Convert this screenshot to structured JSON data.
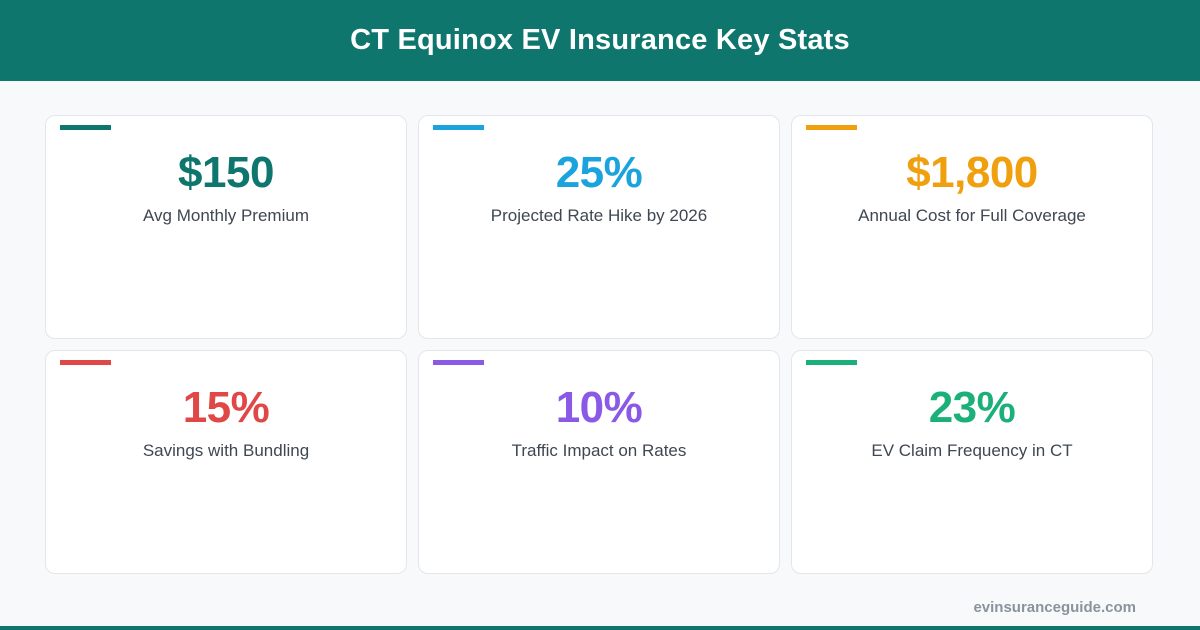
{
  "header": {
    "title": "CT Equinox EV Insurance Key Stats",
    "background_color": "#0f766e"
  },
  "stats": [
    {
      "value": "$150",
      "label": "Avg Monthly Premium",
      "color": "#0f766e"
    },
    {
      "value": "25%",
      "label": "Projected Rate Hike by 2026",
      "color": "#1ba3dd"
    },
    {
      "value": "$1,800",
      "label": "Annual Cost for Full Coverage",
      "color": "#f0a00e"
    },
    {
      "value": "15%",
      "label": "Savings with Bundling",
      "color": "#e04848"
    },
    {
      "value": "10%",
      "label": "Traffic Impact on Rates",
      "color": "#8a5ae6"
    },
    {
      "value": "23%",
      "label": "EV Claim Frequency in CT",
      "color": "#1bb07a"
    }
  ],
  "footer": {
    "site": "evinsuranceguide.com"
  }
}
